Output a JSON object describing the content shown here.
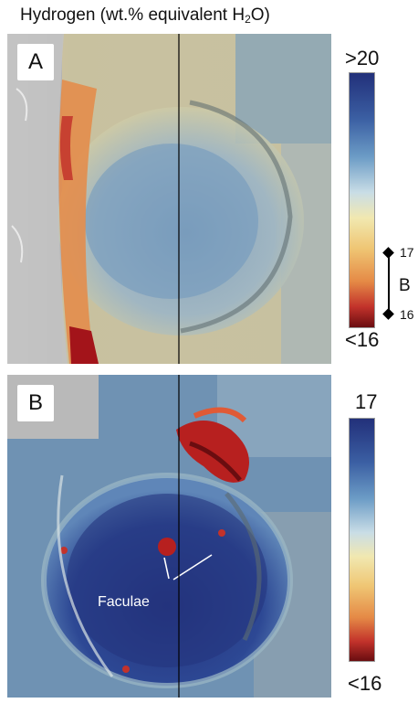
{
  "title": {
    "prefix": "Hydrogen (wt.% equivalent H",
    "subscript": "2",
    "suffix": "O)"
  },
  "panel_a": {
    "label": "A",
    "colorbar_top": ">20",
    "colorbar_bottom": "<16",
    "bracket_top": "17",
    "bracket_bottom": "16",
    "bracket_label": "B"
  },
  "panel_b": {
    "label": "B",
    "colorbar_top": "17",
    "colorbar_bottom": "<16",
    "annotation": "Faculae"
  },
  "colormap": [
    "#22307a",
    "#3b5fa3",
    "#6c9cc6",
    "#c9dde6",
    "#f1e8b0",
    "#efc674",
    "#e58a46",
    "#c2322b",
    "#6a0d10"
  ]
}
